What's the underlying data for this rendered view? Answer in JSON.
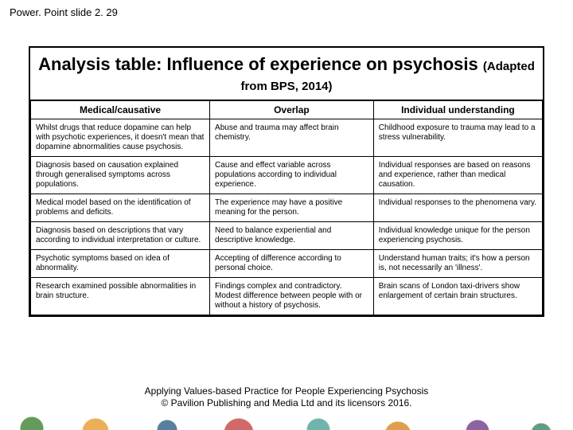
{
  "slide_label": "Power. Point slide 2. 29",
  "title": "Analysis table: Influence of experience on psychosis",
  "subtitle": "(Adapted from BPS, 2014)",
  "table": {
    "columns": [
      "Medical/causative",
      "Overlap",
      "Individual understanding"
    ],
    "rows": [
      [
        "Whilst drugs that reduce dopamine can help with psychotic experiences, it doesn't mean that dopamine abnormalities cause psychosis.",
        "Abuse and trauma may affect brain chemistry.",
        "Childhood exposure to trauma may lead to a stress vulnerability."
      ],
      [
        "Diagnosis based on causation explained through generalised symptoms across populations.",
        "Cause and effect variable across populations according to individual experience.",
        "Individual responses are based on reasons and experience, rather than medical causation."
      ],
      [
        "Medical model based on the identification of problems and deficits.",
        "The experience may have a positive meaning for the person.",
        "Individual responses to the phenomena vary."
      ],
      [
        "Diagnosis based on descriptions that vary according to individual interpretation or culture.",
        "Need to balance experiential and descriptive knowledge.",
        "Individual knowledge unique for the person experiencing psychosis."
      ],
      [
        "Psychotic symptoms based on idea of abnormality.",
        "Accepting of difference according to personal choice.",
        "Understand human traits; it's how a person is, not necessarily an 'illness'."
      ],
      [
        "Research examined possible abnormalities in brain structure.",
        "Findings complex and contradictory. Modest difference between people with or without a history of psychosis.",
        "Brain scans of London taxi-drivers show enlargement of certain brain structures."
      ]
    ]
  },
  "footer": {
    "line1": "Applying Values-based Practice for People Experiencing Psychosis",
    "line2": "© Pavilion Publishing and Media Ltd and its licensors 2016."
  },
  "colors": {
    "border": "#000000",
    "background": "#ffffff",
    "text": "#000000"
  }
}
